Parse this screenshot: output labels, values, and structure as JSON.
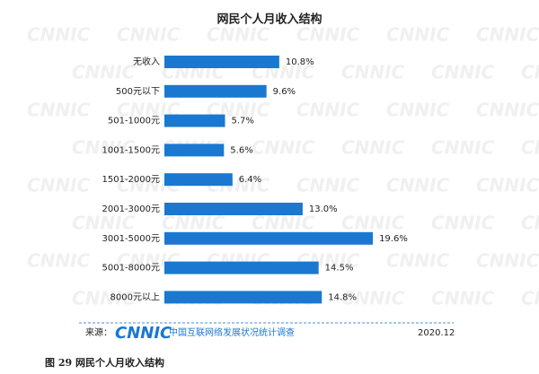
{
  "chart_data": {
    "type": "bar",
    "orientation": "horizontal",
    "title": "网民个人月收入结构",
    "categories": [
      "无收入",
      "500元以下",
      "501-1000元",
      "1001-1500元",
      "1501-2000元",
      "2001-3000元",
      "3001-5000元",
      "5001-8000元",
      "8000元以上"
    ],
    "values": [
      10.8,
      9.6,
      5.7,
      5.6,
      6.4,
      13.0,
      19.6,
      14.5,
      14.8
    ],
    "value_labels": [
      "10.8%",
      "9.6%",
      "5.7%",
      "5.6%",
      "6.4%",
      "13.0%",
      "19.6%",
      "14.5%",
      "14.8%"
    ],
    "color": "#1a78d0"
  },
  "watermark": "CNNIC",
  "footer": {
    "source_label": "来源：",
    "logo": "CNNIC",
    "source_name": "中国互联网络发展状况统计调查",
    "date": "2020.12"
  },
  "caption": {
    "number": "图 29",
    "text": "网民个人月收入结构"
  }
}
